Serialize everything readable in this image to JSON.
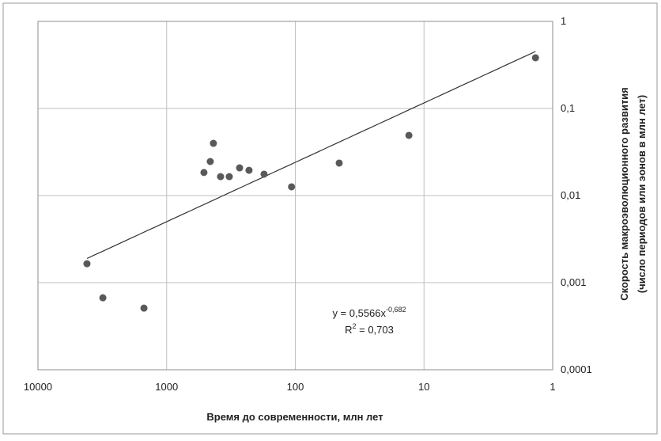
{
  "chart_data": {
    "type": "scatter",
    "xlabel": "Время до современности, млн  лет",
    "ylabel": [
      "Скорость макроэволюционного развития",
      "(число  периодов или эонов в млн  лет)"
    ],
    "x": [
      4160,
      3130,
      1500,
      513,
      458,
      433,
      381,
      326,
      271,
      229,
      175,
      107,
      45.6,
      13.1,
      1.36
    ],
    "y": [
      0.00165,
      0.00067,
      0.00051,
      0.0184,
      0.0246,
      0.0398,
      0.0165,
      0.0165,
      0.0208,
      0.0195,
      0.0176,
      0.0126,
      0.0236,
      0.0491,
      0.382
    ],
    "color": "#595959",
    "xlim": [
      10000,
      1
    ],
    "xscale": "log",
    "xreversed": true,
    "xticks": [
      10000,
      1000,
      100,
      10,
      1
    ],
    "ylim": [
      0.0001,
      1
    ],
    "yscale": "log",
    "yaxis_side": "right",
    "yticks": [
      {
        "value": 0.0001,
        "label": "0,0001"
      },
      {
        "value": 0.001,
        "label": "0,001"
      },
      {
        "value": 0.01,
        "label": "0,01"
      },
      {
        "value": 0.1,
        "label": "0,1"
      },
      1
    ],
    "grid": true,
    "trendline": {
      "a": 0.5566,
      "b": -0.682,
      "color": "#333333",
      "label": {
        "base": "y = 0,5566x",
        "exponent": "-0,682"
      },
      "r2_label": {
        "base": "R",
        "exponent": "2",
        "rest": " = 0,703"
      }
    }
  }
}
